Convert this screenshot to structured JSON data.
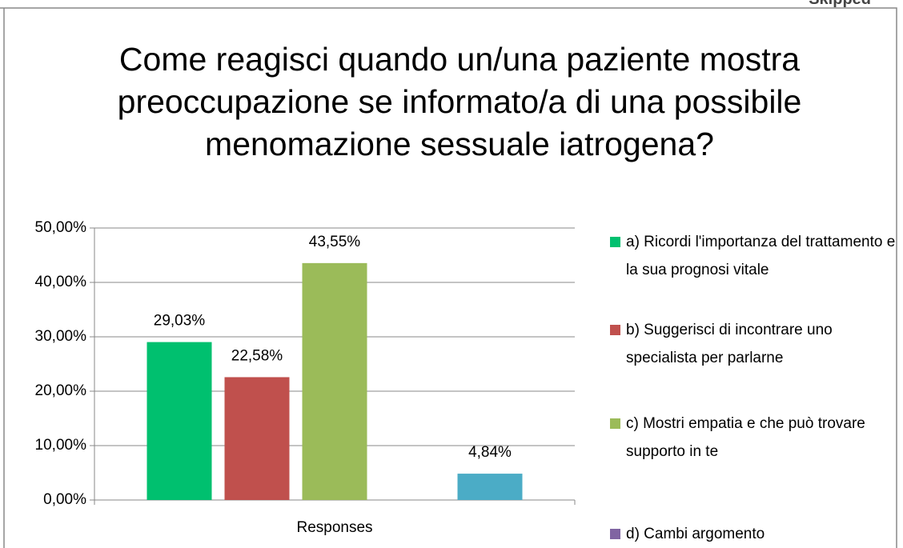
{
  "header_label": "Skipped",
  "chart_data": {
    "type": "bar",
    "title": "Come reagisci quando un/una paziente mostra preoccupazione se informato/a di una possibile menomazione sessuale iatrogena?",
    "categories": [
      "Responses"
    ],
    "series": [
      {
        "name": "a) Ricordi l'importanza del trattamento e la sua prognosi vitale",
        "color": "#00c06f",
        "values": [
          29.03
        ],
        "value_labels": [
          "29,03%"
        ]
      },
      {
        "name": "b) Suggerisci di incontrare uno specialista per parlarne",
        "color": "#c0504d",
        "values": [
          22.58
        ],
        "value_labels": [
          "22,58%"
        ]
      },
      {
        "name": "c) Mostri empatia e che può trovare supporto in te",
        "color": "#9bbb59",
        "values": [
          43.55
        ],
        "value_labels": [
          "43,55%"
        ]
      },
      {
        "name": "d) Cambi argomento",
        "color": "#8064a2",
        "values": [
          0
        ]
      },
      {
        "name": null,
        "color": "#4bacc6",
        "values": [
          4.84
        ],
        "value_labels": [
          "4,84%"
        ]
      }
    ],
    "ylim": [
      0,
      50
    ],
    "yticks": [
      {
        "value": 0,
        "label": "0,00%"
      },
      {
        "value": 10,
        "label": "10,00%"
      },
      {
        "value": 20,
        "label": "20,00%"
      },
      {
        "value": 30,
        "label": "30,00%"
      },
      {
        "value": 40,
        "label": "40,00%"
      },
      {
        "value": 50,
        "label": "50,00%"
      }
    ],
    "grid": true,
    "legend": "right"
  }
}
